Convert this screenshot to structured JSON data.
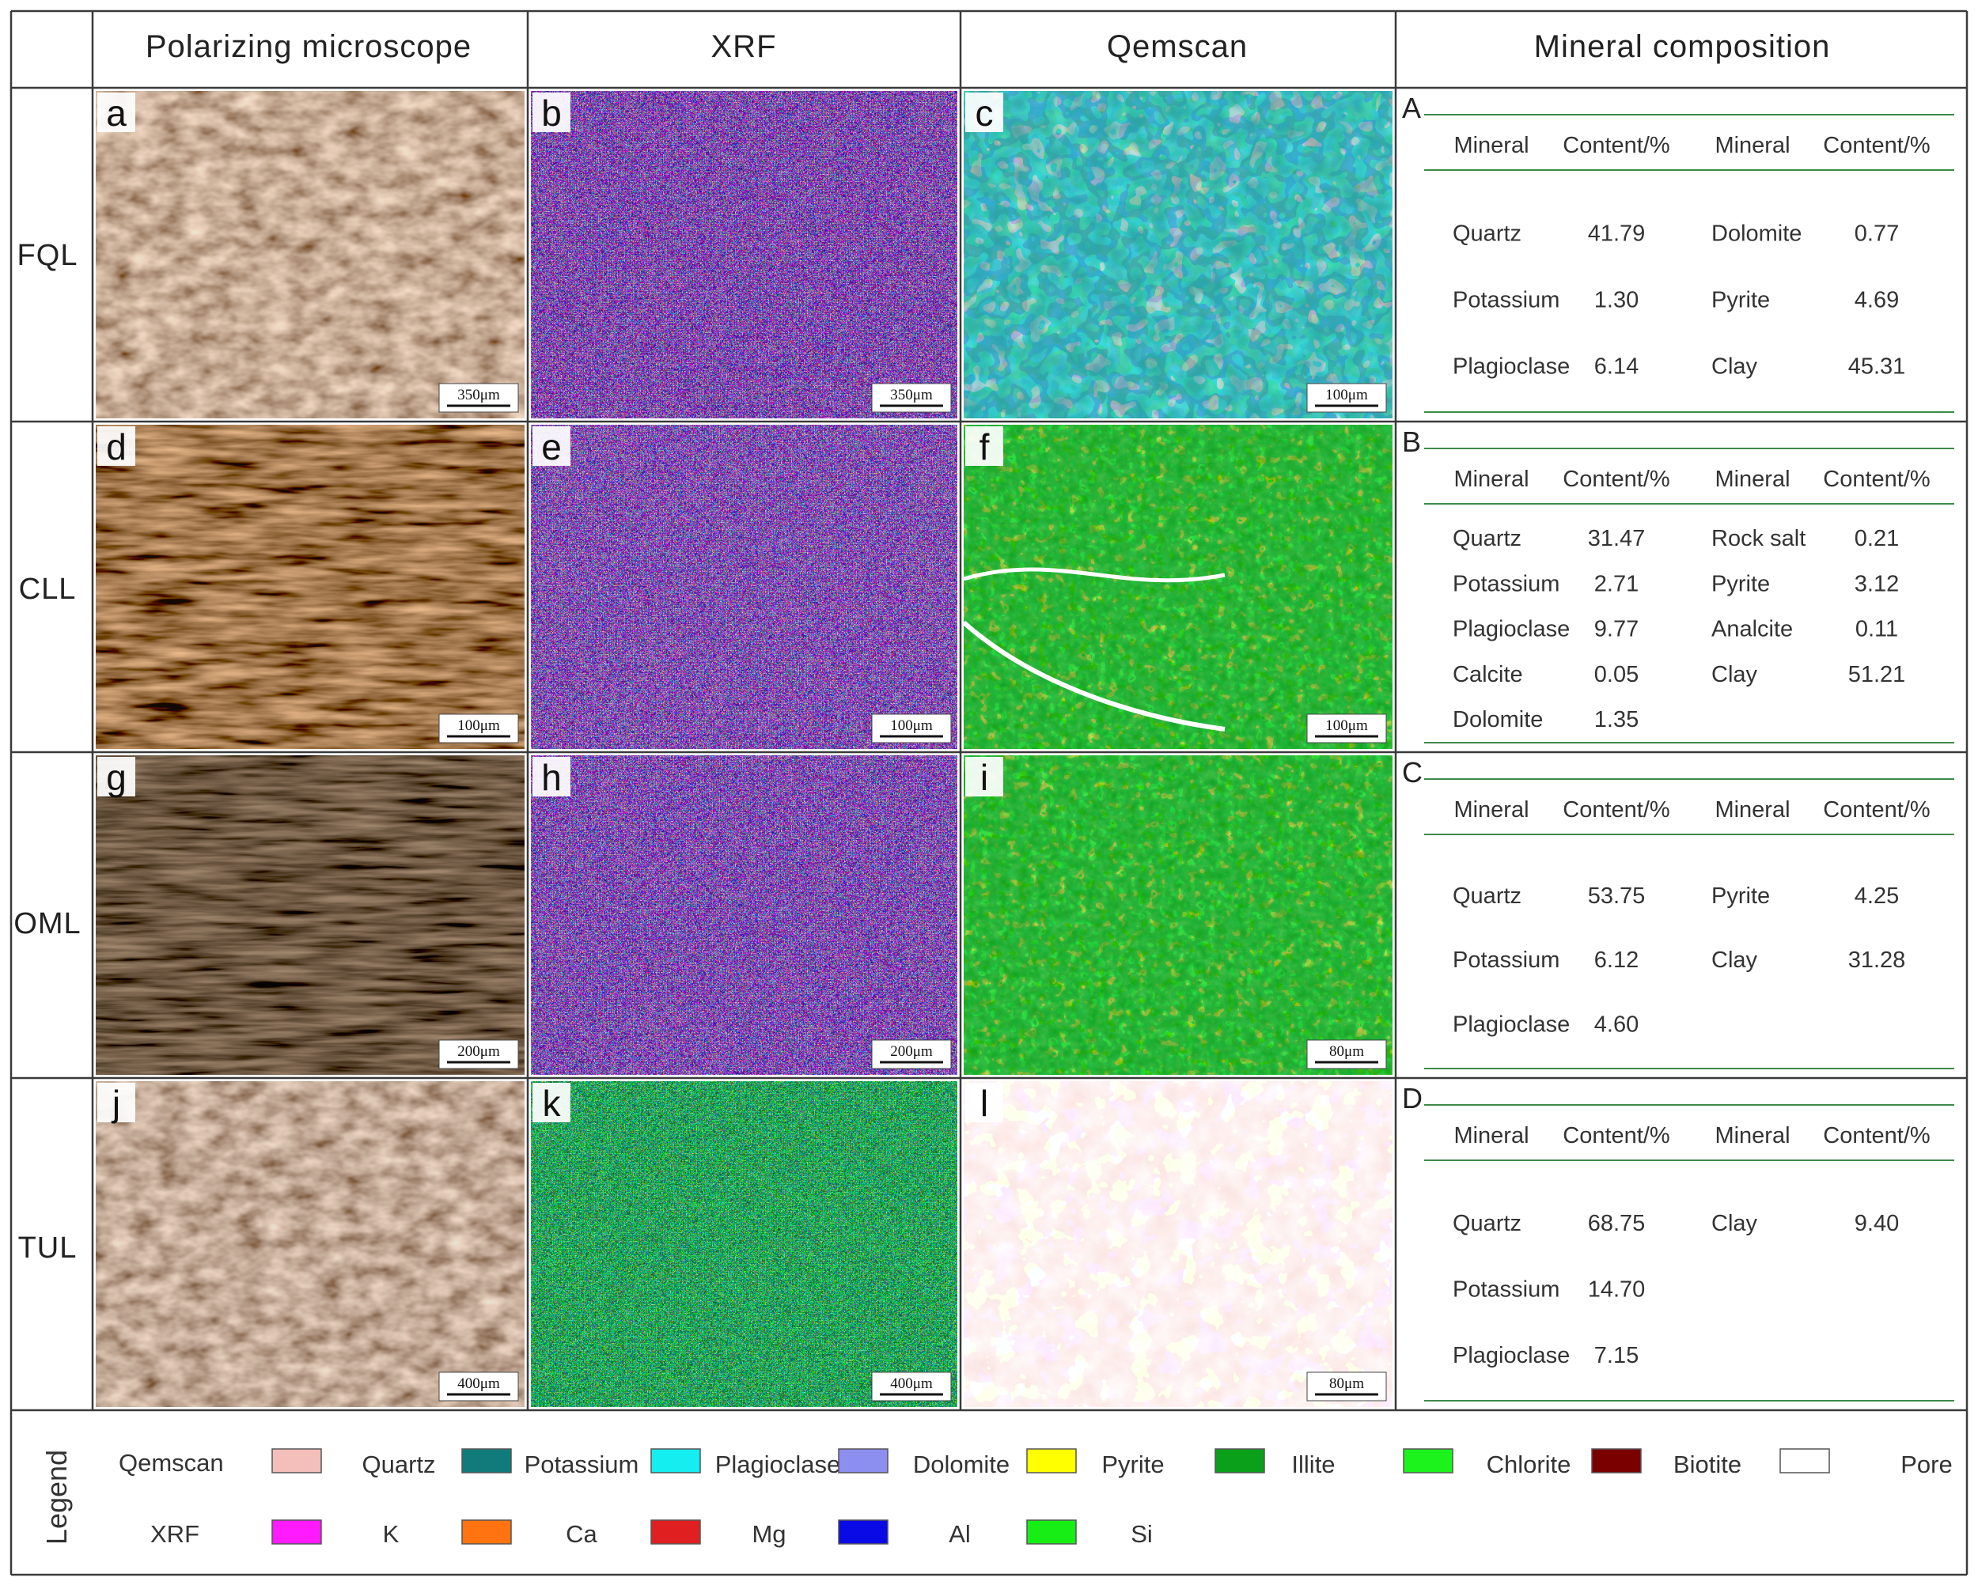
{
  "headers": [
    "Polarizing microscope",
    "XRF",
    "Qemscan",
    "Mineral composition"
  ],
  "rows": [
    {
      "label": "FQL",
      "panels": [
        {
          "letter": "a",
          "scale": "350μm"
        },
        {
          "letter": "b",
          "scale": "350μm"
        },
        {
          "letter": "c",
          "scale": "100μm"
        }
      ],
      "table": {
        "letter": "A",
        "header": [
          "Mineral",
          "Content/%",
          "Mineral",
          "Content/%"
        ],
        "rows": [
          [
            "Quartz",
            "41.79",
            "Dolomite",
            "0.77"
          ],
          [
            "Potassium",
            "1.30",
            "Pyrite",
            "4.69"
          ],
          [
            "Plagioclase",
            "6.14",
            "Clay",
            "45.31"
          ]
        ]
      }
    },
    {
      "label": "CLL",
      "panels": [
        {
          "letter": "d",
          "scale": "100μm"
        },
        {
          "letter": "e",
          "scale": "100μm"
        },
        {
          "letter": "f",
          "scale": "100μm"
        }
      ],
      "table": {
        "letter": "B",
        "header": [
          "Mineral",
          "Content/%",
          "Mineral",
          "Content/%"
        ],
        "rows": [
          [
            "Quartz",
            "31.47",
            "Rock salt",
            "0.21"
          ],
          [
            "Potassium",
            "2.71",
            "Pyrite",
            "3.12"
          ],
          [
            "Plagioclase",
            "9.77",
            "Analcite",
            "0.11"
          ],
          [
            "Calcite",
            "0.05",
            "Clay",
            "51.21"
          ],
          [
            "Dolomite",
            "1.35",
            "",
            ""
          ]
        ]
      }
    },
    {
      "label": "OML",
      "panels": [
        {
          "letter": "g",
          "scale": "200μm"
        },
        {
          "letter": "h",
          "scale": "200μm"
        },
        {
          "letter": "i",
          "scale": "80μm"
        }
      ],
      "table": {
        "letter": "C",
        "header": [
          "Mineral",
          "Content/%",
          "Mineral",
          "Content/%"
        ],
        "rows": [
          [
            "Quartz",
            "53.75",
            "Pyrite",
            "4.25"
          ],
          [
            "Potassium",
            "6.12",
            "Clay",
            "31.28"
          ],
          [
            "Plagioclase",
            "4.60",
            "",
            ""
          ]
        ]
      }
    },
    {
      "label": "TUL",
      "panels": [
        {
          "letter": "j",
          "scale": "400μm"
        },
        {
          "letter": "k",
          "scale": "400μm"
        },
        {
          "letter": "l",
          "scale": "80μm"
        }
      ],
      "table": {
        "letter": "D",
        "header": [
          "Mineral",
          "Content/%",
          "Mineral",
          "Content/%"
        ],
        "rows": [
          [
            "Quartz",
            "68.75",
            "Clay",
            "9.40"
          ],
          [
            "Potassium",
            "14.70",
            "",
            ""
          ],
          [
            "Plagioclase",
            "7.15",
            "",
            ""
          ]
        ]
      }
    }
  ],
  "legend": {
    "title": "Legend",
    "qemscan": {
      "label": "Qemscan",
      "items": [
        {
          "name": "Quartz",
          "color": "#f4bfbb"
        },
        {
          "name": "Potassium",
          "color": "#117b7b"
        },
        {
          "name": "Plagioclase",
          "color": "#14eef0"
        },
        {
          "name": "Dolomite",
          "color": "#8c8ef0"
        },
        {
          "name": "Pyrite",
          "color": "#ffff00"
        },
        {
          "name": "Illite",
          "color": "#0aa01a"
        },
        {
          "name": "Chlorite",
          "color": "#1cf21c"
        },
        {
          "name": "Biotite",
          "color": "#7a0000"
        },
        {
          "name": "Pore",
          "color": "#ffffff"
        }
      ]
    },
    "xrf": {
      "label": "XRF",
      "items": [
        {
          "name": "K",
          "color": "#ff1aff"
        },
        {
          "name": "Ca",
          "color": "#ff7410"
        },
        {
          "name": "Mg",
          "color": "#e02020"
        },
        {
          "name": "Al",
          "color": "#0a0ae6"
        },
        {
          "name": "Si",
          "color": "#16ee16"
        }
      ]
    }
  }
}
